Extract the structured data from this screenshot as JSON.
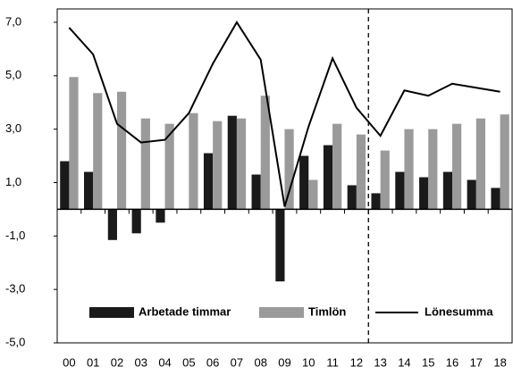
{
  "chart_data": {
    "type": "bar_line",
    "categories": [
      "00",
      "01",
      "02",
      "03",
      "04",
      "05",
      "06",
      "07",
      "08",
      "09",
      "10",
      "11",
      "12",
      "13",
      "14",
      "15",
      "16",
      "17",
      "18"
    ],
    "series": [
      {
        "name": "Arbetade timmar",
        "color": "#1a1a1a",
        "kind": "bar",
        "values": [
          1.8,
          1.4,
          -1.15,
          -0.9,
          -0.5,
          0,
          2.1,
          3.5,
          1.3,
          -2.7,
          2.0,
          2.4,
          0.9,
          0.6,
          1.4,
          1.2,
          1.4,
          1.1,
          0.8
        ]
      },
      {
        "name": "Timlön",
        "color": "#9a9a9a",
        "kind": "bar",
        "values": [
          4.95,
          4.35,
          4.4,
          3.4,
          3.2,
          3.6,
          3.3,
          3.4,
          4.25,
          3.0,
          1.1,
          3.2,
          2.8,
          2.2,
          3.0,
          3.0,
          3.2,
          3.4,
          3.55
        ]
      },
      {
        "name": "Lönesumma",
        "color": "#000000",
        "kind": "line",
        "values": [
          6.8,
          5.8,
          3.2,
          2.5,
          2.6,
          3.6,
          5.45,
          7.0,
          5.6,
          0.1,
          3.1,
          5.65,
          3.8,
          2.75,
          4.45,
          4.25,
          4.7,
          4.55,
          4.4
        ]
      }
    ],
    "ylim": [
      -5,
      7.5
    ],
    "yticks": [
      {
        "value": -5,
        "label": "-5,0"
      },
      {
        "value": -3,
        "label": "-3,0"
      },
      {
        "value": -1,
        "label": "-1,0"
      },
      {
        "value": 1,
        "label": "1,0"
      },
      {
        "value": 3,
        "label": "3,0"
      },
      {
        "value": 5,
        "label": "5,0"
      },
      {
        "value": 7,
        "label": "7,0"
      }
    ]
  }
}
